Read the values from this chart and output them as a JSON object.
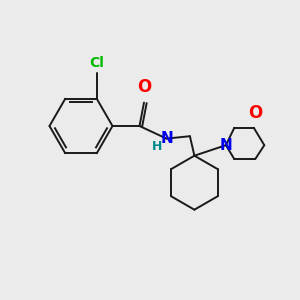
{
  "background_color": "#ebebeb",
  "bond_color": "#1a1a1a",
  "atom_colors": {
    "Cl": "#00bb00",
    "O": "#ff0000",
    "N_amide": "#0000ee",
    "N_morph": "#0000ee",
    "H": "#008888",
    "C": "#1a1a1a"
  },
  "figsize": [
    3.0,
    3.0
  ],
  "dpi": 100
}
